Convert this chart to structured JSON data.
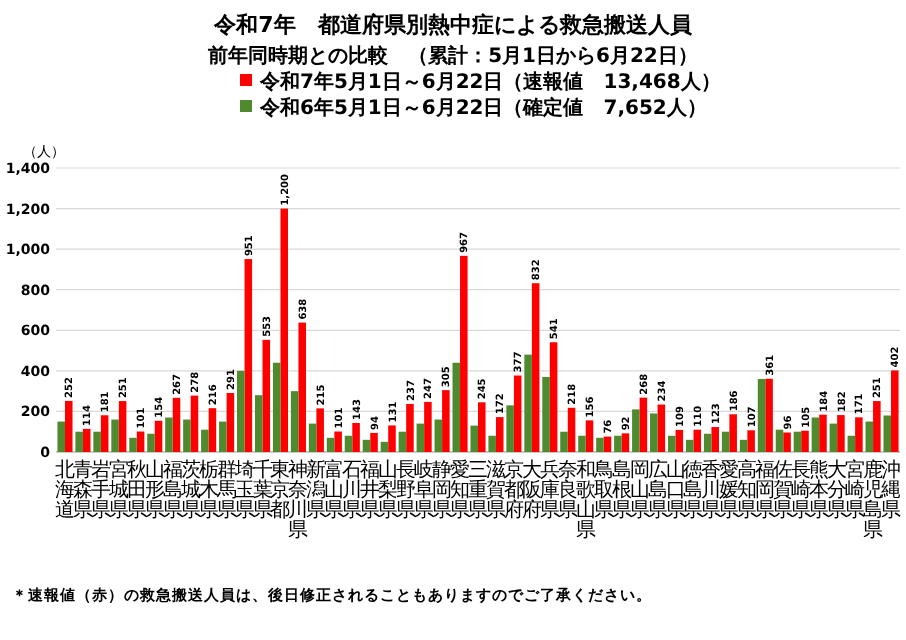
{
  "chart_data": {
    "type": "bar",
    "title": "令和7年　都道府県別熱中症による救急搬送人員",
    "subtitle": "前年同時期との比較　（累計：5月1日から6月22日）",
    "ylabel": "（人）",
    "categories": [
      "北海道",
      "青森県",
      "岩手県",
      "宮城県",
      "秋田県",
      "山形県",
      "福島県",
      "茨城県",
      "栃木県",
      "群馬県",
      "埼玉県",
      "千葉県",
      "東京都",
      "神奈川県",
      "新潟県",
      "富山県",
      "石川県",
      "福井県",
      "山梨県",
      "長野県",
      "岐阜県",
      "静岡県",
      "愛知県",
      "三重県",
      "滋賀県",
      "京都府",
      "大阪府",
      "兵庫県",
      "奈良県",
      "和歌山県",
      "鳥取県",
      "島根県",
      "岡山県",
      "広島県",
      "山口県",
      "徳島県",
      "香川県",
      "愛媛県",
      "高知県",
      "福岡県",
      "佐賀県",
      "長崎県",
      "熊本県",
      "大分県",
      "宮崎県",
      "鹿児島県",
      "沖縄県"
    ],
    "series": [
      {
        "name": "令和7年5月1日～6月22日（速報値　13,468人）",
        "color": "#ff0000",
        "values": [
          252,
          114,
          181,
          251,
          101,
          154,
          267,
          278,
          216,
          291,
          951,
          553,
          1200,
          638,
          215,
          101,
          143,
          94,
          131,
          237,
          247,
          305,
          967,
          245,
          172,
          377,
          832,
          541,
          218,
          156,
          76,
          92,
          268,
          234,
          109,
          110,
          123,
          186,
          107,
          361,
          96,
          105,
          184,
          182,
          171,
          251,
          402
        ],
        "value_labels": [
          "252",
          "114",
          "181",
          "251",
          "101",
          "154",
          "267",
          "278",
          "216",
          "291",
          "951",
          "553",
          "1,200",
          "638",
          "215",
          "101",
          "143",
          "94",
          "131",
          "237",
          "247",
          "305",
          "967",
          "245",
          "172",
          "377",
          "832",
          "541",
          "218",
          "156",
          "76",
          "92",
          "268",
          "234",
          "109",
          "110",
          "123",
          "186",
          "107",
          "361",
          "96",
          "105",
          "184",
          "182",
          "171",
          "251",
          "402"
        ]
      },
      {
        "name": "令和6年5月1日～6月22日（確定値　7,652人）",
        "color": "#4f8a2f",
        "values": [
          150,
          100,
          100,
          160,
          70,
          90,
          170,
          160,
          110,
          150,
          400,
          280,
          440,
          300,
          140,
          70,
          80,
          60,
          50,
          100,
          140,
          160,
          440,
          130,
          80,
          230,
          480,
          370,
          100,
          80,
          70,
          80,
          210,
          190,
          80,
          60,
          90,
          100,
          60,
          360,
          110,
          100,
          170,
          140,
          80,
          150,
          180
        ]
      }
    ],
    "ylim": [
      0,
      1400
    ],
    "yticks": [
      0,
      {
        "value": 200,
        "label": "200"
      },
      {
        "value": 400,
        "label": "400"
      },
      {
        "value": 600,
        "label": "600"
      },
      {
        "value": 800,
        "label": "800"
      },
      {
        "value": 1000,
        "label": "1,000"
      },
      {
        "value": 1200,
        "label": "1,200"
      },
      {
        "value": 1400,
        "label": "1,400"
      }
    ],
    "grid": "y",
    "legend": "top",
    "data_labels": false,
    "annotations": [
      "＊速報値（赤）の救急搬送人員は、後日修正されることもありますのでご了承ください。"
    ]
  }
}
